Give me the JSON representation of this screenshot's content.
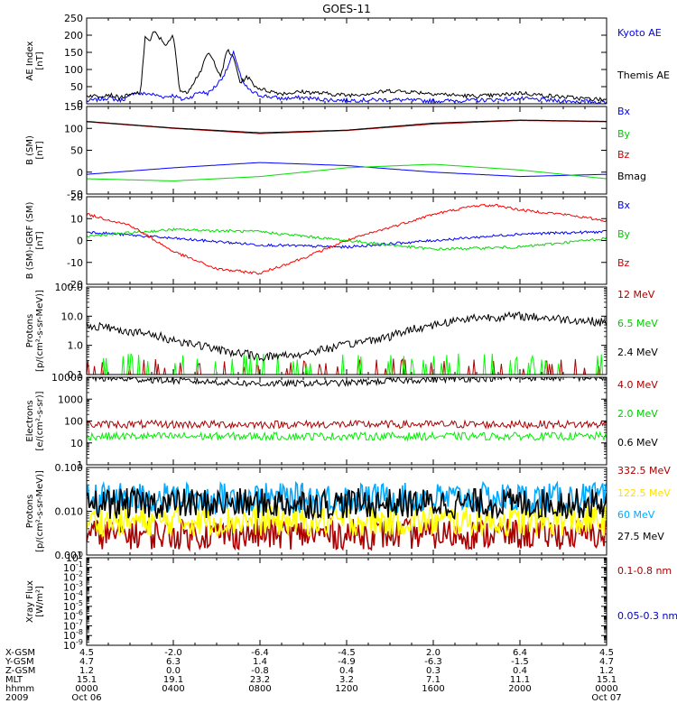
{
  "title": "GOES-11",
  "chart_data": [
    {
      "type": "line",
      "panel": "ae",
      "ylabel": [
        "AE Index",
        "[nT]"
      ],
      "ylim": [
        0,
        250
      ],
      "yticks": [
        0,
        50,
        100,
        150,
        200,
        250
      ],
      "scale": "linear",
      "series": [
        {
          "name": "Kyoto AE",
          "color": "#0000ff",
          "x": [
            0,
            0.5,
            1,
            1.5,
            2,
            2.2,
            2.5,
            2.8,
            3.2,
            3.6,
            4,
            4.4,
            4.8,
            5.2,
            5.6,
            6,
            6.4,
            6.8,
            7.2,
            7.6,
            8,
            9,
            10,
            11,
            12,
            14,
            16,
            18,
            20,
            22,
            24
          ],
          "y": [
            8,
            12,
            18,
            10,
            20,
            35,
            28,
            30,
            25,
            20,
            25,
            12,
            20,
            35,
            30,
            55,
            90,
            150,
            60,
            35,
            25,
            15,
            18,
            12,
            10,
            12,
            8,
            10,
            15,
            8,
            5
          ]
        },
        {
          "name": "Themis AE",
          "color": "#000000",
          "x": [
            0,
            0.5,
            1,
            1.5,
            2,
            2.5,
            2.7,
            2.9,
            3.1,
            3.4,
            3.7,
            4,
            4.3,
            4.6,
            4.9,
            5.3,
            5.6,
            5.9,
            6.2,
            6.5,
            6.8,
            7.1,
            7.4,
            7.8,
            8.2,
            9,
            10,
            11,
            12,
            13,
            14,
            15,
            16,
            17,
            18,
            19,
            20,
            21,
            22,
            23,
            24
          ],
          "y": [
            25,
            22,
            28,
            18,
            25,
            35,
            200,
            180,
            210,
            190,
            170,
            200,
            40,
            30,
            60,
            100,
            150,
            120,
            80,
            160,
            130,
            60,
            80,
            50,
            40,
            30,
            35,
            30,
            25,
            30,
            38,
            35,
            30,
            25,
            22,
            25,
            32,
            25,
            20,
            15,
            12
          ]
        }
      ]
    },
    {
      "type": "line",
      "panel": "b_gsm",
      "ylabel": [
        "B (SM)",
        "[nT]"
      ],
      "ylim": [
        -50,
        150
      ],
      "yticks": [
        -50,
        0,
        50,
        100,
        150
      ],
      "scale": "linear",
      "series": [
        {
          "name": "Bx",
          "color": "#0000ff",
          "x": [
            0,
            4,
            8,
            12,
            16,
            20,
            24
          ],
          "y": [
            -5,
            10,
            22,
            15,
            0,
            -10,
            -5
          ]
        },
        {
          "name": "By",
          "color": "#00dd00",
          "x": [
            0,
            4,
            8,
            12,
            16,
            20,
            24
          ],
          "y": [
            -15,
            -20,
            -10,
            10,
            18,
            5,
            -15
          ]
        },
        {
          "name": "Bz",
          "color": "#cc0000",
          "x": [
            0,
            4,
            8,
            12,
            16,
            20,
            24
          ],
          "y": [
            115,
            100,
            88,
            95,
            110,
            118,
            115
          ]
        },
        {
          "name": "Bmag",
          "color": "#000000",
          "x": [
            0,
            4,
            8,
            12,
            16,
            20,
            24
          ],
          "y": [
            116,
            101,
            90,
            96,
            112,
            119,
            116
          ]
        }
      ]
    },
    {
      "type": "line",
      "panel": "b_minus_igrf",
      "ylabel": [
        "B (SM)-IGRF (SM)",
        "[nT]"
      ],
      "ylim": [
        -20,
        20
      ],
      "yticks": [
        -20,
        -10,
        0,
        10,
        20
      ],
      "scale": "linear",
      "series": [
        {
          "name": "Bx",
          "color": "#0000ff",
          "x": [
            0,
            4,
            8,
            12,
            16,
            20,
            24
          ],
          "y": [
            4,
            1,
            -2,
            -3,
            0,
            3,
            4
          ]
        },
        {
          "name": "By",
          "color": "#00dd00",
          "x": [
            0,
            4,
            8,
            12,
            16,
            20,
            24
          ],
          "y": [
            2,
            5,
            4,
            0,
            -4,
            -3,
            1
          ]
        },
        {
          "name": "Bz",
          "color": "#ff0000",
          "x": [
            0,
            2,
            4,
            6,
            8,
            10,
            12,
            14,
            16,
            18,
            19,
            20,
            22,
            24
          ],
          "y": [
            12,
            7,
            -5,
            -13,
            -15,
            -8,
            0,
            6,
            12,
            16,
            16,
            14,
            12,
            9
          ]
        }
      ]
    },
    {
      "type": "line",
      "panel": "protons_low",
      "ylabel": [
        "Protons",
        "[p/(cm²-s-sr-MeV)]"
      ],
      "ylim": [
        0.1,
        100
      ],
      "yticks": [
        0.1,
        1.0,
        10.0,
        100.0
      ],
      "yticklabels": [
        "0.1",
        "1.0",
        "10.0",
        "100.0"
      ],
      "scale": "log",
      "series": [
        {
          "name": "12 MeV",
          "color": "#aa0000",
          "x": [
            0,
            24
          ],
          "y": [
            0.1,
            0.1
          ]
        },
        {
          "name": "6.5 MeV",
          "color": "#00ff00",
          "x": [
            0,
            24
          ],
          "y": [
            0.15,
            0.15
          ]
        },
        {
          "name": "2.4 MeV",
          "color": "#000000",
          "x": [
            0,
            2,
            4,
            6,
            8,
            10,
            12,
            14,
            16,
            18,
            20,
            22,
            24
          ],
          "y": [
            5,
            3,
            1.5,
            0.7,
            0.4,
            0.5,
            1,
            2,
            5,
            9,
            10,
            8,
            6
          ]
        }
      ]
    },
    {
      "type": "line",
      "panel": "electrons",
      "ylabel": [
        "Electrons",
        "[e/(cm²-s-sr)]"
      ],
      "ylim": [
        1,
        10000
      ],
      "yticks": [
        1,
        10,
        100,
        1000,
        10000
      ],
      "yticklabels": [
        "1",
        "10",
        "100",
        "1000",
        "10000"
      ],
      "scale": "log",
      "series": [
        {
          "name": "4.0 MeV",
          "color": "#aa0000",
          "x": [
            0,
            24
          ],
          "y": [
            70,
            70
          ]
        },
        {
          "name": "2.0 MeV",
          "color": "#00ee00",
          "x": [
            0,
            24
          ],
          "y": [
            20,
            20
          ]
        },
        {
          "name": "0.6 MeV",
          "color": "#000000",
          "x": [
            0,
            4,
            8,
            12,
            16,
            20,
            24
          ],
          "y": [
            9500,
            7000,
            5000,
            5500,
            8000,
            9500,
            9500
          ]
        }
      ]
    },
    {
      "type": "line",
      "panel": "protons_high",
      "ylabel": [
        "Protons",
        "[p/(cm²-s-sr-MeV)]"
      ],
      "ylim": [
        0.001,
        0.1
      ],
      "yticks": [
        0.001,
        0.01,
        0.1
      ],
      "yticklabels": [
        "0.001",
        "0.010",
        "0.100"
      ],
      "scale": "log",
      "series": [
        {
          "name": "332.5 MeV",
          "color": "#aa0000",
          "x": [
            0,
            24
          ],
          "y": [
            0.003,
            0.003
          ]
        },
        {
          "name": "122.5 MeV",
          "color": "#ffff00",
          "x": [
            0,
            24
          ],
          "y": [
            0.006,
            0.006
          ]
        },
        {
          "name": "60 MeV",
          "color": "#00aaff",
          "x": [
            0,
            24
          ],
          "y": [
            0.02,
            0.02
          ]
        },
        {
          "name": "27.5 MeV",
          "color": "#000000",
          "x": [
            0,
            24
          ],
          "y": [
            0.015,
            0.015
          ]
        }
      ]
    },
    {
      "type": "line",
      "panel": "xray",
      "ylabel": [
        "Xray Flux",
        "[W/m²]"
      ],
      "ylim": [
        1e-09,
        1
      ],
      "yticks": [
        1e-09,
        1e-08,
        1e-07,
        1e-06,
        1e-05,
        0.0001,
        0.001,
        0.01,
        0.1,
        1
      ],
      "yticklabels_base": "10",
      "yticklabels_exp": [
        "-9",
        "-8",
        "-7",
        "-6",
        "-5",
        "-4",
        "-3",
        "-2",
        "-1",
        "0"
      ],
      "scale": "log",
      "series": [
        {
          "name": "0.1-0.8 nm",
          "color": "#aa0000",
          "x": [],
          "y": []
        },
        {
          "name": "0.05-0.3 nm",
          "color": "#0000cc",
          "x": [],
          "y": []
        }
      ]
    }
  ],
  "xaxis": {
    "range_hours": [
      0,
      24
    ],
    "tick_hours": [
      0,
      4,
      8,
      12,
      16,
      20,
      24
    ],
    "rows": [
      {
        "label": "X-GSM",
        "values": [
          "4.5",
          "-2.0",
          "-6.4",
          "-4.5",
          "2.0",
          "6.4",
          "4.5"
        ]
      },
      {
        "label": "Y-GSM",
        "values": [
          "4.7",
          "6.3",
          "1.4",
          "-4.9",
          "-6.3",
          "-1.5",
          "4.7"
        ]
      },
      {
        "label": "Z-GSM",
        "values": [
          "1.2",
          "0.0",
          "-0.8",
          "0.4",
          "0.3",
          "0.4",
          "1.2"
        ]
      },
      {
        "label": "MLT",
        "values": [
          "15.1",
          "19.1",
          "23.2",
          "3.2",
          "7.1",
          "11.1",
          "15.1"
        ]
      },
      {
        "label": "hhmm",
        "values": [
          "0000",
          "0400",
          "0800",
          "1200",
          "1600",
          "2000",
          "0000"
        ]
      },
      {
        "label": "2009",
        "values": [
          "Oct 06",
          "",
          "",
          "",
          "",
          "",
          "Oct 07"
        ]
      }
    ]
  }
}
